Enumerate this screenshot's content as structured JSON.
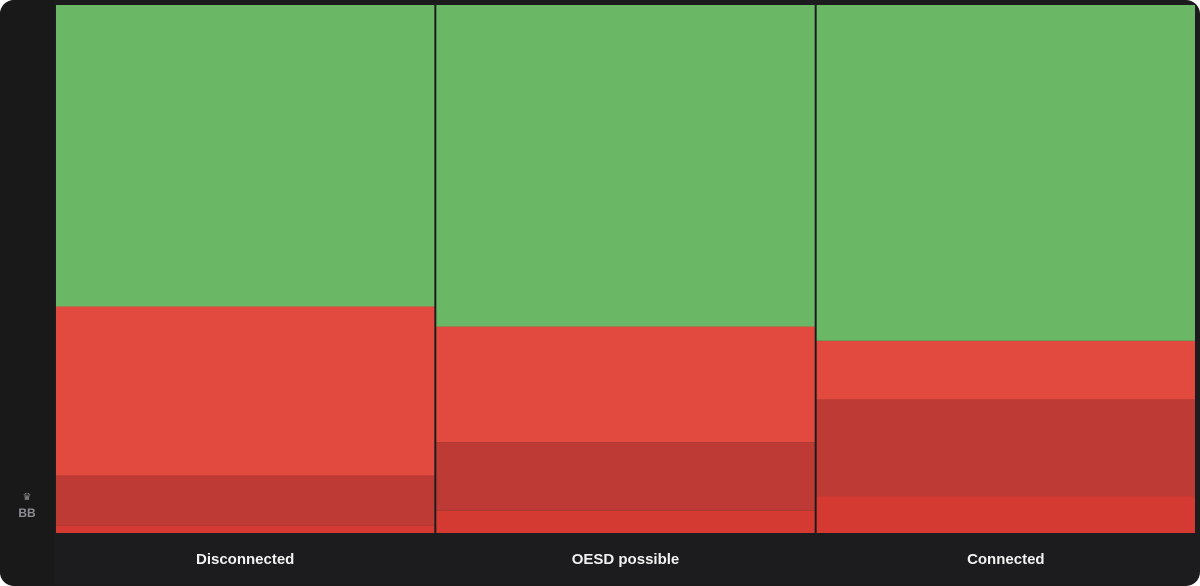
{
  "brand": {
    "icon": "crown-icon",
    "label": "BB"
  },
  "chart_data": {
    "type": "bar",
    "stacked": true,
    "normalized": true,
    "categories": [
      "Disconnected",
      "OESD possible",
      "Connected"
    ],
    "series": [
      {
        "color": "#d43a32",
        "values": [
          1.4,
          4.2,
          7.0
        ]
      },
      {
        "color": "#be3b35",
        "values": [
          9.5,
          13.0,
          18.3
        ]
      },
      {
        "color": "#e2493f",
        "values": [
          32.0,
          21.9,
          11.1
        ]
      },
      {
        "color": "#6ab866",
        "values": [
          57.1,
          60.9,
          63.6
        ]
      }
    ],
    "ylim": [
      0,
      100
    ],
    "grid": false,
    "legend": "none"
  }
}
